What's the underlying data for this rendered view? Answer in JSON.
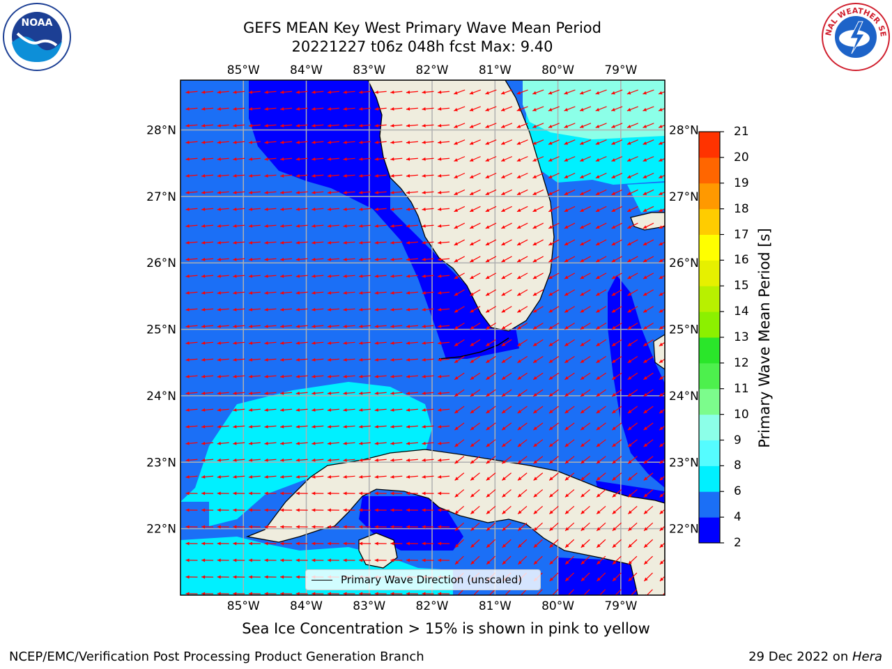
{
  "title": {
    "line1": "GEFS MEAN Key West Primary Wave Mean Period",
    "line2": "20221227 t06z 048h fcst   Max: 9.40"
  },
  "logos": {
    "left": {
      "name": "noaa-logo",
      "text": "NOAA"
    },
    "right": {
      "name": "nws-logo",
      "text": "NATIONAL WEATHER SERVICE"
    }
  },
  "map": {
    "lon_labels": [
      "85°W",
      "84°W",
      "83°W",
      "82°W",
      "81°W",
      "80°W",
      "79°W"
    ],
    "lat_labels": [
      "28°N",
      "27°N",
      "26°N",
      "25°N",
      "24°N",
      "23°N",
      "22°N"
    ],
    "extent": {
      "lon_min": -86.0,
      "lon_max": -78.3,
      "lat_min": 21.0,
      "lat_max": 28.75
    },
    "legend_label": "Primary Wave Direction (unscaled)",
    "arrow_color": "#ff0000",
    "land_color": "#efedde",
    "grid_color": "#b0b0b0"
  },
  "colorbar": {
    "label": "Primary Wave Mean Period [s]",
    "ticks": [
      "2",
      "4",
      "6",
      "8",
      "9",
      "10",
      "11",
      "12",
      "13",
      "14",
      "15",
      "16",
      "17",
      "18",
      "19",
      "20",
      "21"
    ],
    "colors": [
      "#0000ff",
      "#1b6ff6",
      "#00f0ff",
      "#55fcff",
      "#8cffe8",
      "#7cfc8c",
      "#4df04d",
      "#2ae62a",
      "#8cf000",
      "#b8f000",
      "#e6f000",
      "#ffff00",
      "#ffcc00",
      "#ff9900",
      "#ff6600",
      "#ff3300",
      "#ff0000"
    ]
  },
  "subtitle": "Sea Ice Concentration > 15% is shown in pink to yellow",
  "footer": {
    "left": "NCEP/EMC/Verification Post Processing Product Generation Branch",
    "right_prefix": "29 Dec 2022 on ",
    "right_host": "Hera"
  }
}
